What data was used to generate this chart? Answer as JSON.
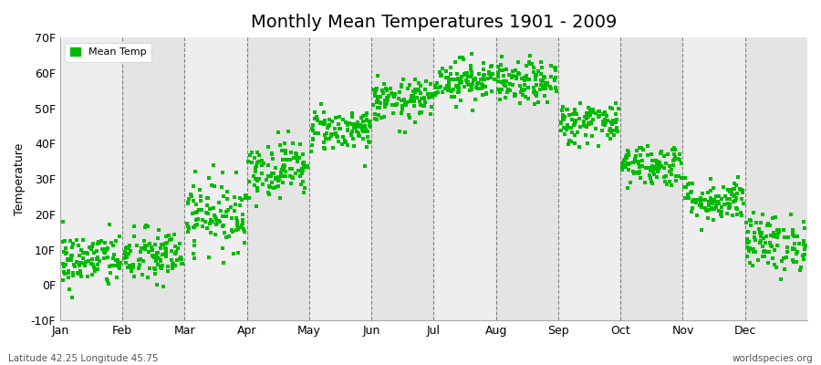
{
  "title": "Monthly Mean Temperatures 1901 - 2009",
  "ylabel": "Temperature",
  "ylim": [
    -10,
    70
  ],
  "yticks": [
    -10,
    0,
    10,
    20,
    30,
    40,
    50,
    60,
    70
  ],
  "ytick_labels": [
    "-10F",
    "0F",
    "10F",
    "20F",
    "30F",
    "40F",
    "50F",
    "60F",
    "70F"
  ],
  "months": [
    "Jan",
    "Feb",
    "Mar",
    "Apr",
    "May",
    "Jun",
    "Jul",
    "Aug",
    "Sep",
    "Oct",
    "Nov",
    "Dec"
  ],
  "month_means_f": [
    7,
    8,
    20,
    33,
    44,
    52,
    58,
    57,
    46,
    34,
    24,
    12
  ],
  "month_stds_f": [
    4,
    4,
    5,
    4,
    3,
    3,
    3,
    3,
    3,
    3,
    3,
    4
  ],
  "dot_color": "#00bb00",
  "dot_size": 6,
  "bg_color_light": "#eeeeee",
  "bg_color_dark": "#e4e4e4",
  "grid_color": "#555555",
  "legend_label": "Mean Temp",
  "footer_left": "Latitude 42.25 Longitude 45.75",
  "footer_right": "worldspecies.org",
  "n_years": 109,
  "seed": 42,
  "title_fontsize": 14,
  "axis_fontsize": 9,
  "ylabel_fontsize": 9,
  "footer_fontsize": 7.5
}
